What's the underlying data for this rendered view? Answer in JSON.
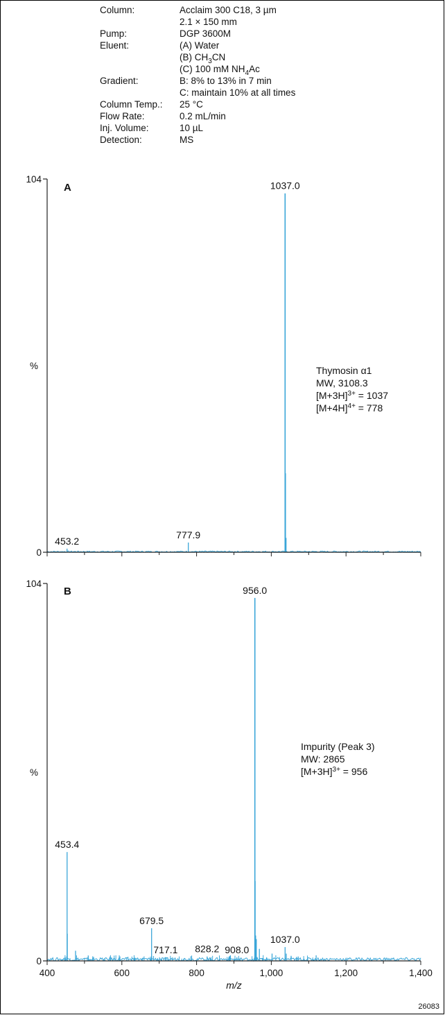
{
  "conditions": [
    {
      "label": "Column:",
      "lines": [
        "Acclaim 300 C18, 3 µm",
        "2.1 × 150 mm"
      ]
    },
    {
      "label": "Pump:",
      "lines": [
        "DGP 3600M"
      ]
    },
    {
      "label": "Eluent:",
      "lines": [
        "(A) Water",
        "(B) CH3CN",
        "(C) 100 mM NH4Ac"
      ]
    },
    {
      "label": "Gradient:",
      "lines": [
        "B: 8% to 13% in 7 min",
        "C: maintain 10% at all times"
      ]
    },
    {
      "label": "Column Temp.:",
      "lines": [
        "25 °C"
      ]
    },
    {
      "label": "Flow Rate:",
      "lines": [
        "0.2 mL/min"
      ]
    },
    {
      "label": "Inj. Volume:",
      "lines": [
        "10 µL"
      ]
    },
    {
      "label": "Detection:",
      "lines": [
        "MS"
      ]
    }
  ],
  "figure_id": "26083",
  "colors": {
    "trace": "#3aa6d8",
    "axis": "#222222",
    "text": "#111111"
  },
  "chart_data": [
    {
      "type": "line",
      "panel": "A",
      "xlim": [
        400,
        1400
      ],
      "ylim": [
        0,
        104
      ],
      "yticks": [
        "0",
        "104"
      ],
      "ylabel": "%",
      "annotation": [
        "Thymosin α1",
        "MW, 3108.3",
        "[M+3H]3+ = 1037",
        "[M+4H]4+ = 778"
      ],
      "peaks": [
        {
          "x": 453.2,
          "y": 1.0,
          "label": "453.2"
        },
        {
          "x": 777.9,
          "y": 2.7,
          "label": "777.9"
        },
        {
          "x": 1037.0,
          "y": 100,
          "label": "1037.0"
        },
        {
          "x": 1038.0,
          "y": 22.0,
          "label": ""
        },
        {
          "x": 1039.5,
          "y": 4.0,
          "label": ""
        }
      ]
    },
    {
      "type": "line",
      "panel": "B",
      "xlim": [
        400,
        1400
      ],
      "ylim": [
        0,
        104
      ],
      "xticks": [
        "400",
        "600",
        "800",
        "1,000",
        "1,200",
        "1,400"
      ],
      "yticks": [
        "0",
        "104"
      ],
      "ylabel": "%",
      "xlabel": "m/z",
      "annotation": [
        "Impurity (Peak 3)",
        "MW: 2865",
        "[M+3H]3+ = 956"
      ],
      "peaks": [
        {
          "x": 453.4,
          "y": 30.0,
          "label": "453.4"
        },
        {
          "x": 454.0,
          "y": 7.5,
          "label": ""
        },
        {
          "x": 476.0,
          "y": 2.8,
          "label": ""
        },
        {
          "x": 510.0,
          "y": 1.5,
          "label": ""
        },
        {
          "x": 679.5,
          "y": 9.0,
          "label": "679.5"
        },
        {
          "x": 717.1,
          "y": 1.0,
          "label": "717.1"
        },
        {
          "x": 828.2,
          "y": 1.2,
          "label": "828.2"
        },
        {
          "x": 908.0,
          "y": 1.0,
          "label": "908.0"
        },
        {
          "x": 956.0,
          "y": 100,
          "label": "956.0"
        },
        {
          "x": 956.8,
          "y": 22.0,
          "label": ""
        },
        {
          "x": 958.0,
          "y": 7.0,
          "label": ""
        },
        {
          "x": 960.0,
          "y": 6.0,
          "label": ""
        },
        {
          "x": 968.0,
          "y": 3.3,
          "label": ""
        },
        {
          "x": 1002.0,
          "y": 2.0,
          "label": ""
        },
        {
          "x": 1037.0,
          "y": 3.8,
          "label": "1037.0"
        },
        {
          "x": 1040.0,
          "y": 2.0,
          "label": ""
        },
        {
          "x": 1053.0,
          "y": 1.4,
          "label": ""
        },
        {
          "x": 1072.0,
          "y": 1.2,
          "label": ""
        }
      ]
    }
  ]
}
